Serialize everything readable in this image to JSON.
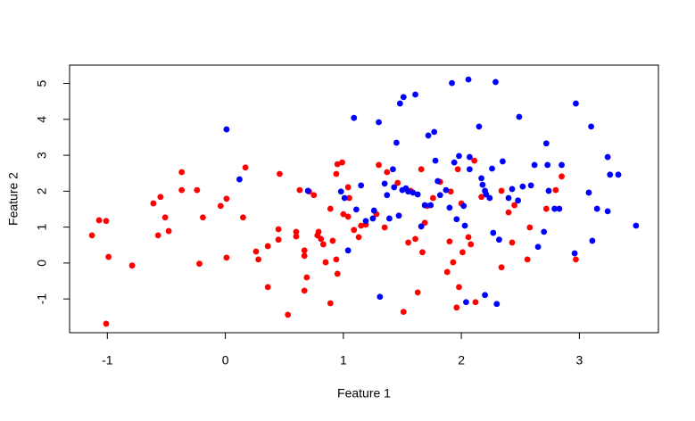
{
  "chart_data": {
    "type": "scatter",
    "x_label": "Feature 1",
    "y_label": "Feature 2",
    "xlim": [
      -1.32,
      3.67
    ],
    "ylim": [
      -1.94,
      5.51
    ],
    "xticks": [
      -1,
      0,
      1,
      2,
      3
    ],
    "yticks": [
      -1,
      0,
      1,
      2,
      3,
      4,
      5
    ],
    "grid": false,
    "series": [
      {
        "color": "#ff0000",
        "x": [
          -1.13,
          -1.07,
          -1.01,
          -0.99,
          -1.01,
          -0.79,
          -0.61,
          -0.57,
          -0.55,
          -0.51,
          -0.48,
          -0.37,
          -0.37,
          -0.24,
          -0.22,
          -0.19,
          -0.04,
          0.01,
          0.01,
          0.15,
          0.17,
          0.26,
          0.28,
          0.36,
          0.36,
          0.45,
          0.45,
          0.46,
          0.53,
          0.6,
          0.6,
          0.63,
          0.67,
          0.67,
          0.67,
          0.69,
          0.71,
          0.75,
          0.78,
          0.79,
          0.81,
          0.83,
          0.85,
          0.89,
          0.89,
          0.91,
          0.94,
          0.95,
          0.94,
          0.95,
          0.99,
          1.0,
          1.04,
          1.05,
          1.04,
          1.09,
          1.13,
          1.15,
          1.19,
          1.28,
          1.3,
          1.35,
          1.37,
          1.46,
          1.47,
          1.51,
          1.55,
          1.57,
          1.61,
          1.63,
          1.66,
          1.67,
          1.69,
          1.71,
          1.76,
          1.82,
          1.88,
          1.9,
          1.91,
          1.93,
          1.96,
          1.98,
          1.97,
          2.0,
          2.01,
          2.06,
          2.08,
          2.11,
          2.12,
          2.17,
          2.34,
          2.34,
          2.4,
          2.43,
          2.45,
          2.58,
          2.56,
          2.72,
          2.8,
          2.85,
          2.97
        ],
        "y": [
          0.77,
          1.19,
          1.17,
          0.17,
          -1.69,
          -0.07,
          1.66,
          0.77,
          1.84,
          1.27,
          0.89,
          2.03,
          2.53,
          2.03,
          -0.02,
          1.27,
          1.59,
          1.79,
          0.15,
          1.27,
          2.66,
          0.32,
          0.1,
          0.47,
          -0.67,
          0.65,
          0.94,
          2.48,
          -1.44,
          0.87,
          0.74,
          2.03,
          0.35,
          0.2,
          -0.77,
          -0.4,
          1.99,
          1.89,
          0.77,
          0.87,
          0.67,
          0.52,
          0.02,
          1.51,
          -1.12,
          0.62,
          2.48,
          2.75,
          0.1,
          -0.3,
          2.8,
          1.36,
          2.11,
          1.81,
          1.29,
          0.92,
          0.72,
          1.04,
          1.07,
          1.36,
          2.73,
          0.99,
          2.53,
          2.23,
          1.32,
          -1.36,
          0.57,
          2.01,
          0.67,
          -0.82,
          2.61,
          0.3,
          1.12,
          1.59,
          1.81,
          2.26,
          -0.25,
          0.6,
          1.99,
          0.02,
          -1.24,
          -0.67,
          2.61,
          1.66,
          0.3,
          0.72,
          0.52,
          2.85,
          -1.09,
          1.84,
          -0.12,
          2.01,
          1.41,
          0.57,
          1.61,
          0.99,
          0.1,
          1.51,
          2.03,
          2.41,
          0.1
        ]
      },
      {
        "color": "#0000ff",
        "x": [
          0.01,
          0.12,
          0.7,
          0.98,
          1.01,
          1.04,
          1.09,
          1.11,
          1.15,
          1.19,
          1.25,
          1.26,
          1.3,
          1.31,
          1.35,
          1.37,
          1.39,
          1.42,
          1.43,
          1.45,
          1.47,
          1.48,
          1.5,
          1.51,
          1.53,
          1.55,
          1.59,
          1.61,
          1.63,
          1.66,
          1.69,
          1.72,
          1.74,
          1.77,
          1.78,
          1.8,
          1.82,
          1.87,
          1.9,
          1.92,
          1.94,
          1.96,
          1.98,
          2.02,
          2.03,
          2.04,
          2.06,
          2.07,
          2.07,
          2.15,
          2.17,
          2.18,
          2.2,
          2.2,
          2.21,
          2.24,
          2.26,
          2.27,
          2.29,
          2.3,
          2.32,
          2.35,
          2.4,
          2.43,
          2.48,
          2.49,
          2.52,
          2.59,
          2.62,
          2.65,
          2.7,
          2.72,
          2.73,
          2.74,
          2.79,
          2.83,
          2.85,
          2.96,
          2.97,
          3.08,
          3.1,
          3.11,
          3.15,
          3.24,
          3.24,
          3.26,
          3.33,
          3.48
        ],
        "y": [
          3.72,
          2.33,
          2.01,
          1.99,
          1.81,
          0.35,
          4.04,
          1.49,
          2.16,
          1.17,
          1.24,
          1.46,
          3.92,
          -0.94,
          2.21,
          1.89,
          1.24,
          2.61,
          2.11,
          3.35,
          1.32,
          4.44,
          2.03,
          4.62,
          2.08,
          1.99,
          1.96,
          4.69,
          1.91,
          1.02,
          1.61,
          3.55,
          1.61,
          3.65,
          2.85,
          2.28,
          1.89,
          2.03,
          1.54,
          5.01,
          2.8,
          1.22,
          2.98,
          1.59,
          1.04,
          -1.09,
          5.11,
          2.95,
          2.61,
          3.8,
          2.36,
          2.18,
          2.01,
          -0.89,
          1.91,
          1.81,
          2.63,
          0.84,
          5.04,
          -1.14,
          0.65,
          2.83,
          1.81,
          2.06,
          1.74,
          4.07,
          2.13,
          2.16,
          2.73,
          0.45,
          0.87,
          3.33,
          2.73,
          2.01,
          1.51,
          1.51,
          2.73,
          0.27,
          4.44,
          1.96,
          3.8,
          0.62,
          1.51,
          2.95,
          1.44,
          2.46,
          2.46,
          1.04
        ]
      }
    ]
  }
}
